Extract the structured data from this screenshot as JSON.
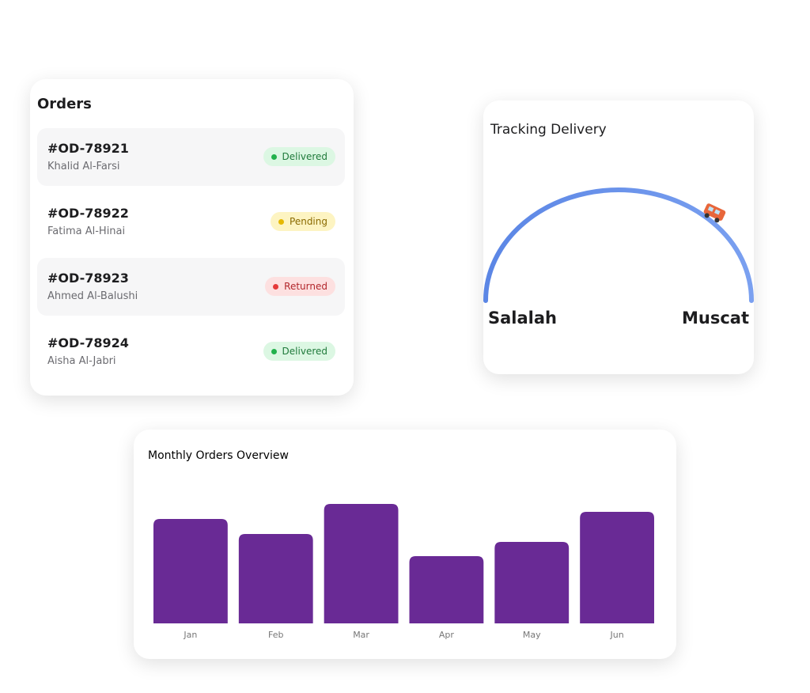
{
  "orders": {
    "title": "Orders",
    "items": [
      {
        "id": "#OD-78921",
        "name": "Khalid Al-Farsi",
        "status": "Delivered"
      },
      {
        "id": "#OD-78922",
        "name": "Fatima Al-Hinai",
        "status": "Pending"
      },
      {
        "id": "#OD-78923",
        "name": "Ahmed Al-Balushi",
        "status": "Returned"
      },
      {
        "id": "#OD-78924",
        "name": "Aisha Al-Jabri",
        "status": "Delivered"
      }
    ]
  },
  "tracking": {
    "title": "Tracking Delivery",
    "origin": "Salalah",
    "destination": "Muscat"
  },
  "chart_data": {
    "type": "bar",
    "title": "Monthly Orders Overview",
    "categories": [
      "Jan",
      "Feb",
      "Mar",
      "Apr",
      "May",
      "Jun"
    ],
    "values": [
      132,
      113,
      151,
      85,
      103,
      141
    ],
    "color": "#692a95",
    "ylim": [
      0,
      160
    ]
  }
}
